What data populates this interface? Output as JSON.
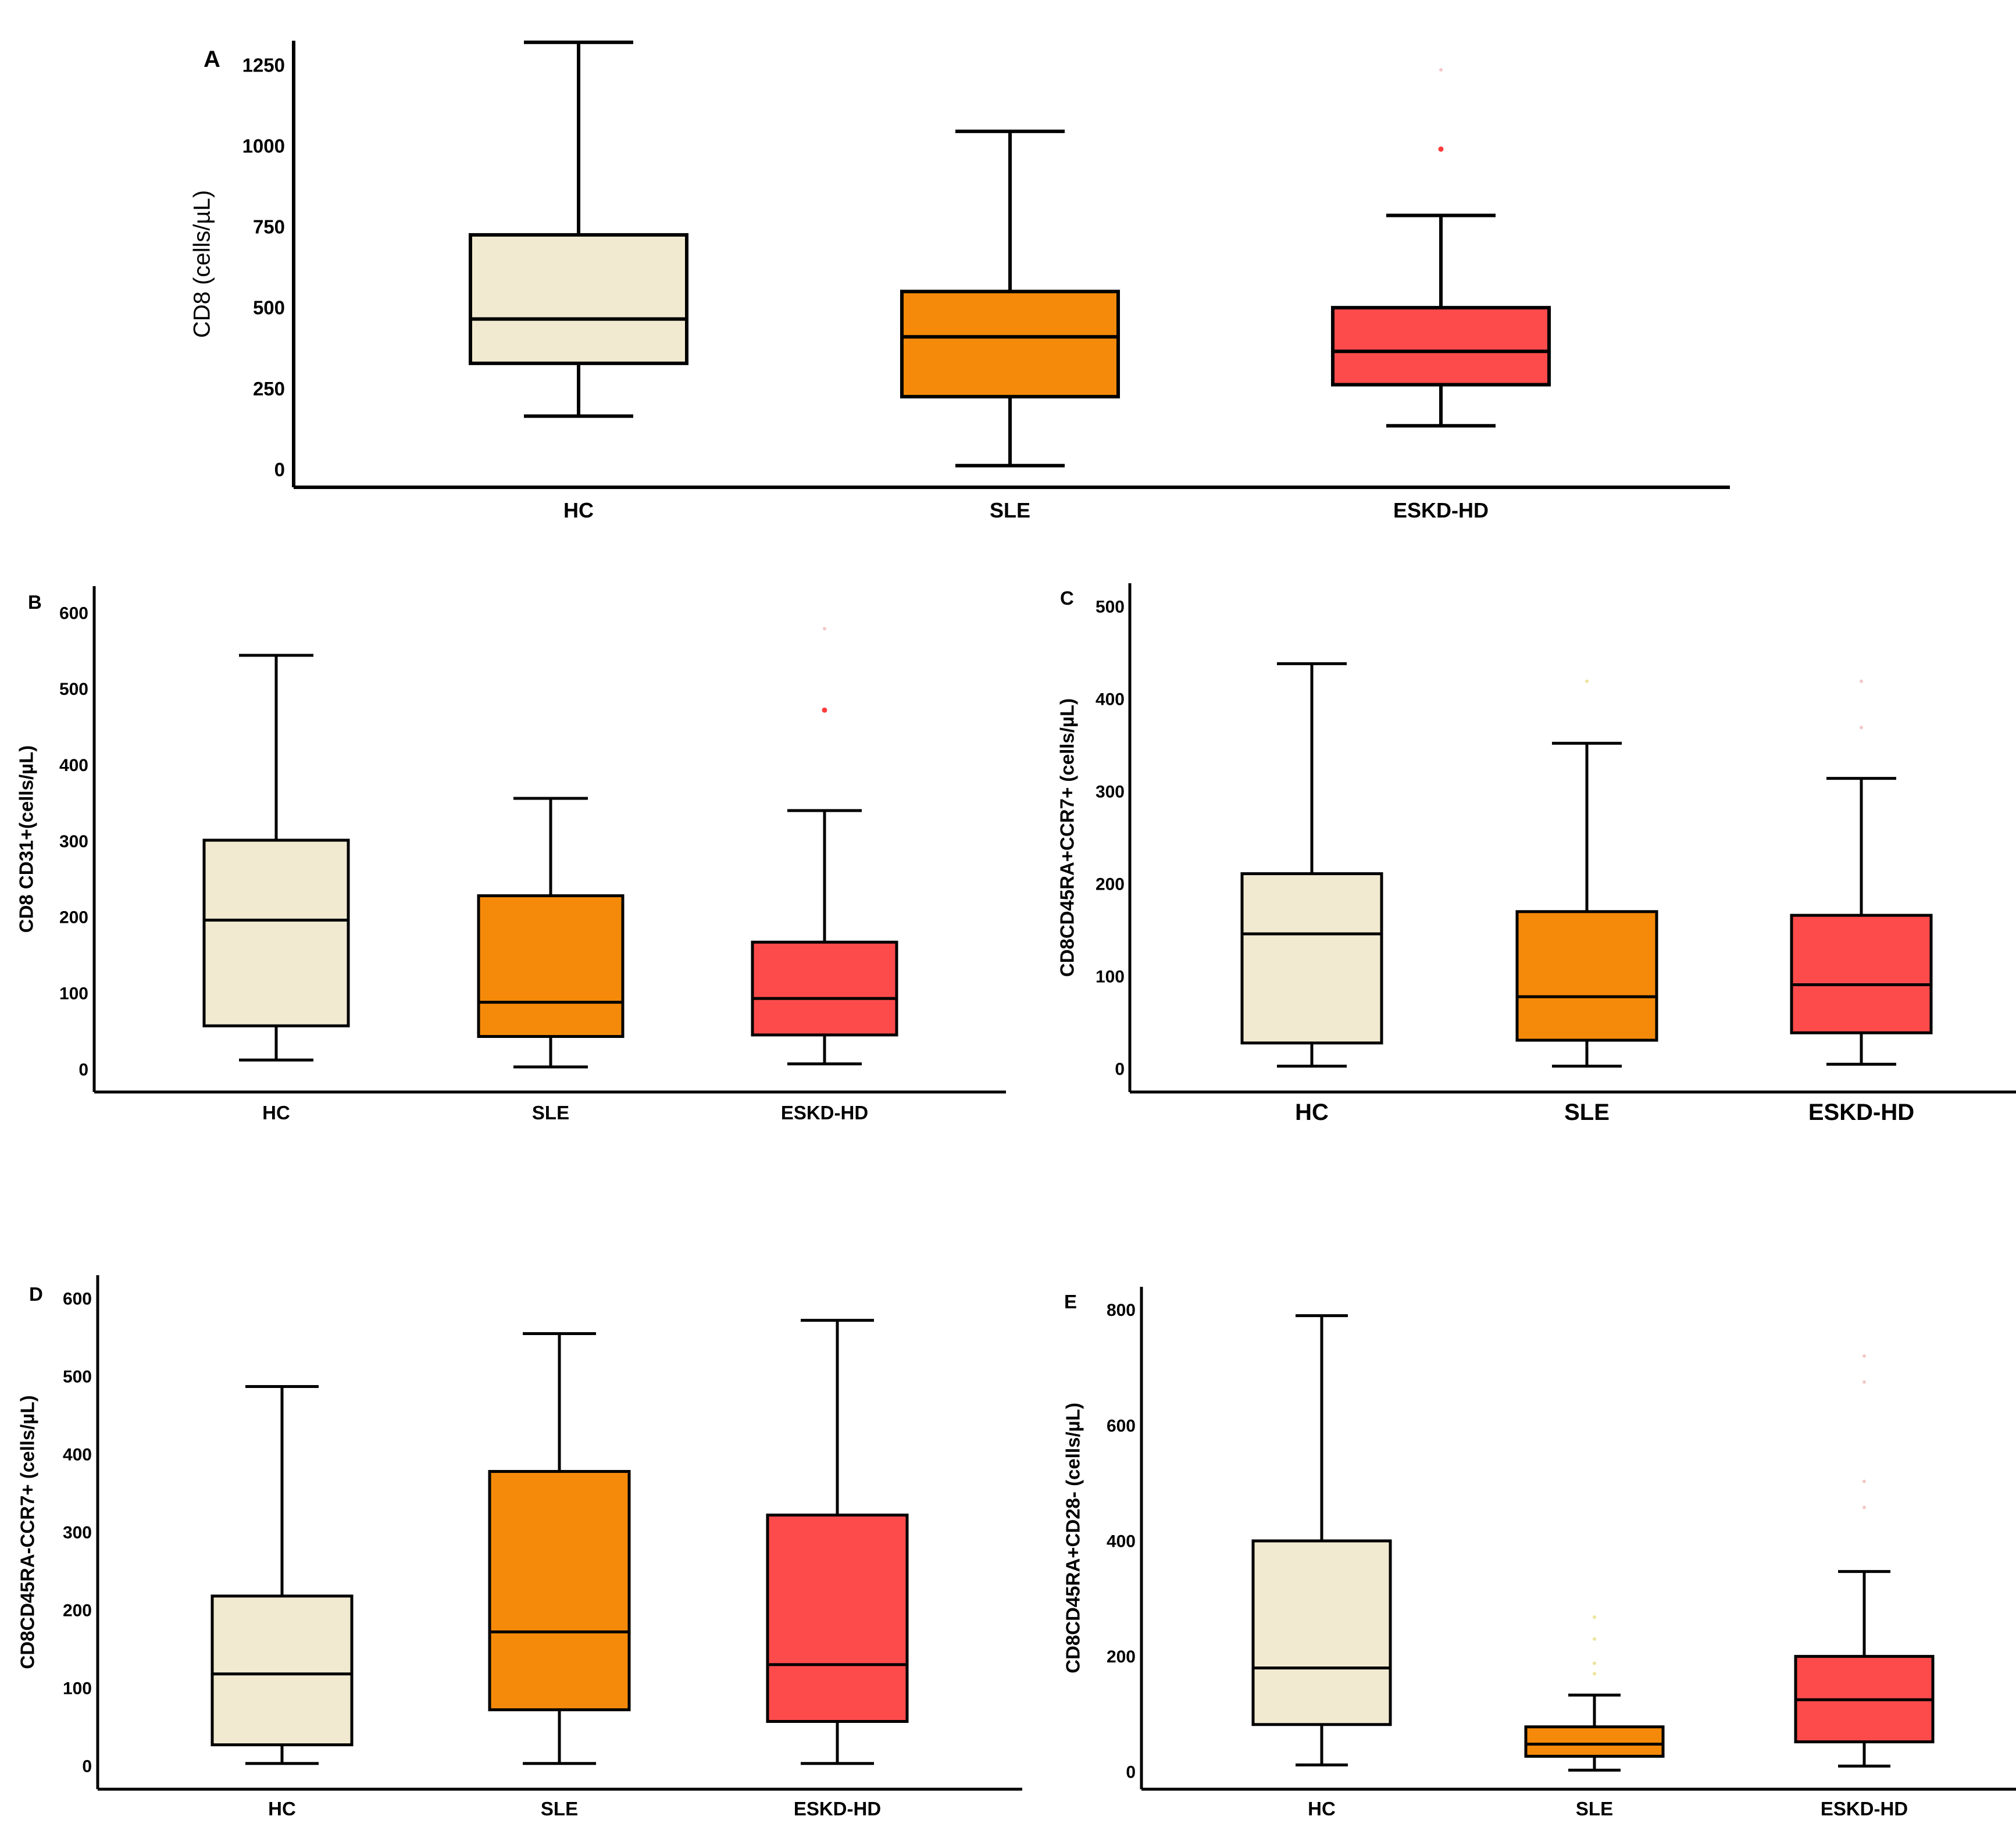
{
  "colors": {
    "HC": "#f1ead0",
    "SLE": "#f58a0a",
    "ESKD-HD": "#fd4b4c",
    "outlier": "#ff3b3b",
    "outlier_faint": "#f2c8c8",
    "outlier_sle_faint": "#efe39a"
  },
  "chart_data": [
    {
      "panel": "A",
      "type": "box",
      "ylabel": "CD8 (cells/µL)",
      "categories": [
        "HC",
        "SLE",
        "ESKD-HD"
      ],
      "ylim": [
        -55,
        1325
      ],
      "yticks": [
        0,
        250,
        500,
        750,
        1000,
        1250
      ],
      "ytick_labels": [
        "0",
        "250",
        "500",
        "750",
        "1000",
        "1250"
      ],
      "boxes": [
        {
          "group": "HC",
          "whisker_low": 165,
          "q1": 328,
          "median": 465,
          "q3": 725,
          "whisker_high": 1320
        },
        {
          "group": "SLE",
          "whisker_low": 12,
          "q1": 225,
          "median": 410,
          "q3": 550,
          "whisker_high": 1045
        },
        {
          "group": "ESKD-HD",
          "whisker_low": 135,
          "q1": 262,
          "median": 365,
          "q3": 500,
          "whisker_high": 785
        }
      ],
      "outliers": [
        {
          "group": "ESKD-HD",
          "value": 990,
          "faint": false
        },
        {
          "group": "ESKD-HD",
          "value": 1235,
          "faint": true
        }
      ]
    },
    {
      "panel": "B",
      "type": "box",
      "ylabel": "CD8 CD31+(cells/µL)",
      "categories": [
        "HC",
        "SLE",
        "ESKD-HD"
      ],
      "ylim": [
        -30,
        635
      ],
      "yticks": [
        0,
        100,
        200,
        300,
        400,
        500,
        600
      ],
      "ytick_labels": [
        "0",
        "100",
        "200",
        "300",
        "400",
        "500",
        "600"
      ],
      "boxes": [
        {
          "group": "HC",
          "whisker_low": 12,
          "q1": 57,
          "median": 196,
          "q3": 301,
          "whisker_high": 544
        },
        {
          "group": "SLE",
          "whisker_low": 3,
          "q1": 43,
          "median": 88,
          "q3": 228,
          "whisker_high": 356
        },
        {
          "group": "ESKD-HD",
          "whisker_low": 7,
          "q1": 45,
          "median": 93,
          "q3": 167,
          "whisker_high": 340
        }
      ],
      "outliers": [
        {
          "group": "ESKD-HD",
          "value": 472,
          "faint": false
        },
        {
          "group": "ESKD-HD",
          "value": 579,
          "faint": true
        }
      ]
    },
    {
      "panel": "C",
      "type": "box",
      "ylabel": "CD8CD45RA+CCR7+ (cells/µL)",
      "categories": [
        "HC",
        "SLE",
        "ESKD-HD"
      ],
      "ylim": [
        -25,
        525
      ],
      "yticks": [
        0,
        100,
        200,
        300,
        400,
        500
      ],
      "ytick_labels": [
        "0",
        "100",
        "200",
        "300",
        "400",
        "500"
      ],
      "boxes": [
        {
          "group": "HC",
          "whisker_low": 3,
          "q1": 28,
          "median": 146,
          "q3": 211,
          "whisker_high": 438
        },
        {
          "group": "SLE",
          "whisker_low": 3,
          "q1": 31,
          "median": 78,
          "q3": 170,
          "whisker_high": 352
        },
        {
          "group": "ESKD-HD",
          "whisker_low": 5,
          "q1": 39,
          "median": 91,
          "q3": 166,
          "whisker_high": 314
        }
      ],
      "outliers": [
        {
          "group": "SLE",
          "value": 419,
          "faint": true
        },
        {
          "group": "ESKD-HD",
          "value": 369,
          "faint": true
        },
        {
          "group": "ESKD-HD",
          "value": 419,
          "faint": true
        }
      ]
    },
    {
      "panel": "D",
      "type": "box",
      "ylabel": "CD8CD45RA-CCR7+ (cells/µL)",
      "categories": [
        "HC",
        "SLE",
        "ESKD-HD"
      ],
      "ylim": [
        -30,
        630
      ],
      "yticks": [
        0,
        100,
        200,
        300,
        400,
        500,
        600
      ],
      "ytick_labels": [
        "0",
        "100",
        "200",
        "300",
        "400",
        "500",
        "600"
      ],
      "boxes": [
        {
          "group": "HC",
          "whisker_low": 3,
          "q1": 27,
          "median": 118,
          "q3": 218,
          "whisker_high": 487
        },
        {
          "group": "SLE",
          "whisker_low": 3,
          "q1": 72,
          "median": 172,
          "q3": 378,
          "whisker_high": 555
        },
        {
          "group": "ESKD-HD",
          "whisker_low": 3,
          "q1": 57,
          "median": 130,
          "q3": 322,
          "whisker_high": 572
        }
      ],
      "outliers": []
    },
    {
      "panel": "E",
      "type": "box",
      "ylabel": "CD8CD45RA+CD28- (cells/µL)",
      "categories": [
        "HC",
        "SLE",
        "ESKD-HD"
      ],
      "ylim": [
        -30,
        840
      ],
      "yticks": [
        0,
        200,
        400,
        600,
        800
      ],
      "ytick_labels": [
        "0",
        "200",
        "400",
        "600",
        "800"
      ],
      "boxes": [
        {
          "group": "HC",
          "whisker_low": 12,
          "q1": 82,
          "median": 180,
          "q3": 400,
          "whisker_high": 790
        },
        {
          "group": "SLE",
          "whisker_low": 3,
          "q1": 27,
          "median": 48,
          "q3": 78,
          "whisker_high": 133
        },
        {
          "group": "ESKD-HD",
          "whisker_low": 10,
          "q1": 52,
          "median": 125,
          "q3": 200,
          "whisker_high": 347
        }
      ],
      "outliers": [
        {
          "group": "SLE",
          "value": 170,
          "faint": true
        },
        {
          "group": "SLE",
          "value": 188,
          "faint": true
        },
        {
          "group": "SLE",
          "value": 230,
          "faint": true
        },
        {
          "group": "SLE",
          "value": 268,
          "faint": true
        },
        {
          "group": "ESKD-HD",
          "value": 458,
          "faint": true
        },
        {
          "group": "ESKD-HD",
          "value": 503,
          "faint": true
        },
        {
          "group": "ESKD-HD",
          "value": 675,
          "faint": true
        },
        {
          "group": "ESKD-HD",
          "value": 720,
          "faint": true
        }
      ]
    }
  ]
}
